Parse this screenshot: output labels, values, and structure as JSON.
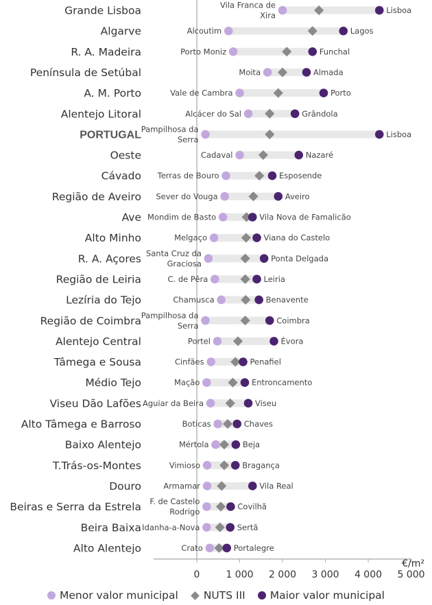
{
  "chart_data": {
    "type": "dot-range",
    "title": "",
    "unit_label": "€/m²",
    "xlim": [
      -1000,
      5000
    ],
    "xticks": [
      0,
      1000,
      2000,
      3000,
      4000,
      5000
    ],
    "xtick_labels": [
      "0",
      "1 000",
      "2 000",
      "3 000",
      "4 000",
      "5 000"
    ],
    "legend": {
      "min_label": "Menor valor municipal",
      "nuts_label": "NUTS III",
      "max_label": "Maior valor municipal"
    },
    "colors": {
      "min": "#c3a8de",
      "nuts": "#8a8a8a",
      "max": "#4b2470",
      "range_bar": "#e8e8e8",
      "axis": "#a6a6a6"
    },
    "rows": [
      {
        "region": "Grande Lisboa",
        "min_name": "Vila Franca de Xira",
        "max_name": "Lisboa",
        "min": 2000,
        "nuts": 2850,
        "max": 4260,
        "highlight": false
      },
      {
        "region": "Algarve",
        "min_name": "Alcoutim",
        "max_name": "Lagos",
        "min": 740,
        "nuts": 2700,
        "max": 3420,
        "highlight": false
      },
      {
        "region": "R. A. Madeira",
        "min_name": "Porto Moniz",
        "max_name": "Funchal",
        "min": 850,
        "nuts": 2100,
        "max": 2700,
        "highlight": false
      },
      {
        "region": "Península de Setúbal",
        "min_name": "Moita",
        "max_name": "Almada",
        "min": 1650,
        "nuts": 2000,
        "max": 2560,
        "highlight": false
      },
      {
        "region": "A. M. Porto",
        "min_name": "Vale de Cambra",
        "max_name": "Porto",
        "min": 1000,
        "nuts": 1900,
        "max": 2960,
        "highlight": false
      },
      {
        "region": "Alentejo Litoral",
        "min_name": "Alcácer do Sal",
        "max_name": "Grândola",
        "min": 1200,
        "nuts": 1700,
        "max": 2290,
        "highlight": false
      },
      {
        "region": "PORTUGAL",
        "min_name": "Pampilhosa da Serra",
        "max_name": "Lisboa",
        "min": 200,
        "nuts": 1700,
        "max": 4260,
        "highlight": true
      },
      {
        "region": "Oeste",
        "min_name": "Cadaval",
        "max_name": "Nazaré",
        "min": 1000,
        "nuts": 1550,
        "max": 2380,
        "highlight": false
      },
      {
        "region": "Cávado",
        "min_name": "Terras de Bouro",
        "max_name": "Esposende",
        "min": 680,
        "nuts": 1460,
        "max": 1760,
        "highlight": false
      },
      {
        "region": "Região de Aveiro",
        "min_name": "Sever do Vouga",
        "max_name": "Aveiro",
        "min": 650,
        "nuts": 1320,
        "max": 1900,
        "highlight": false
      },
      {
        "region": "Ave",
        "min_name": "Mondim de Basto",
        "max_name": "Vila Nova de Famalicão",
        "min": 610,
        "nuts": 1160,
        "max": 1300,
        "highlight": false
      },
      {
        "region": "Alto Minho",
        "min_name": "Melgaço",
        "max_name": "Viana do Castelo",
        "min": 400,
        "nuts": 1150,
        "max": 1400,
        "highlight": false
      },
      {
        "region": "R. A. Açores",
        "min_name": "Santa Cruz da Graciosa",
        "max_name": "Ponta Delgada",
        "min": 270,
        "nuts": 1130,
        "max": 1570,
        "highlight": false
      },
      {
        "region": "Região de Leiria",
        "min_name": "C. de Pêra",
        "max_name": "Leiria",
        "min": 420,
        "nuts": 1130,
        "max": 1400,
        "highlight": false
      },
      {
        "region": "Lezíria do Tejo",
        "min_name": "Chamusca",
        "max_name": "Benavente",
        "min": 570,
        "nuts": 1140,
        "max": 1450,
        "highlight": false
      },
      {
        "region": "Região de Coimbra",
        "min_name": "Pampilhosa da Serra",
        "max_name": "Coimbra",
        "min": 200,
        "nuts": 1130,
        "max": 1700,
        "highlight": false
      },
      {
        "region": "Alentejo Central",
        "min_name": "Portel",
        "max_name": "Évora",
        "min": 480,
        "nuts": 960,
        "max": 1800,
        "highlight": false
      },
      {
        "region": "Tâmega e Sousa",
        "min_name": "Cinfães",
        "max_name": "Penafiel",
        "min": 330,
        "nuts": 900,
        "max": 1080,
        "highlight": false
      },
      {
        "region": "Médio Tejo",
        "min_name": "Mação",
        "max_name": "Entroncamento",
        "min": 230,
        "nuts": 840,
        "max": 1120,
        "highlight": false
      },
      {
        "region": "Viseu Dão Lafões",
        "min_name": "Aguiar da Beira",
        "max_name": "Viseu",
        "min": 320,
        "nuts": 780,
        "max": 1200,
        "highlight": false
      },
      {
        "region": "Alto Tâmega e Barroso",
        "min_name": "Boticas",
        "max_name": "Chaves",
        "min": 490,
        "nuts": 720,
        "max": 940,
        "highlight": false
      },
      {
        "region": "Baixo Alentejo",
        "min_name": "Mértola",
        "max_name": "Beja",
        "min": 440,
        "nuts": 640,
        "max": 910,
        "highlight": false
      },
      {
        "region": "T.Trás-os-Montes",
        "min_name": "Vimioso",
        "max_name": "Bragança",
        "min": 240,
        "nuts": 640,
        "max": 900,
        "highlight": false
      },
      {
        "region": "Douro",
        "min_name": "Armamar",
        "max_name": "Vila Real",
        "min": 240,
        "nuts": 580,
        "max": 1300,
        "highlight": false
      },
      {
        "region": "Beiras e Serra da Estrela",
        "min_name": "F. de Castelo Rodrigo",
        "max_name": "Covilhã",
        "min": 230,
        "nuts": 560,
        "max": 790,
        "highlight": false
      },
      {
        "region": "Beira Baixa",
        "min_name": "Idanha-a-Nova",
        "max_name": "Sertã",
        "min": 230,
        "nuts": 540,
        "max": 780,
        "highlight": false
      },
      {
        "region": "Alto Alentejo",
        "min_name": "Crato",
        "max_name": "Portalegre",
        "min": 300,
        "nuts": 520,
        "max": 700,
        "highlight": false
      }
    ]
  }
}
